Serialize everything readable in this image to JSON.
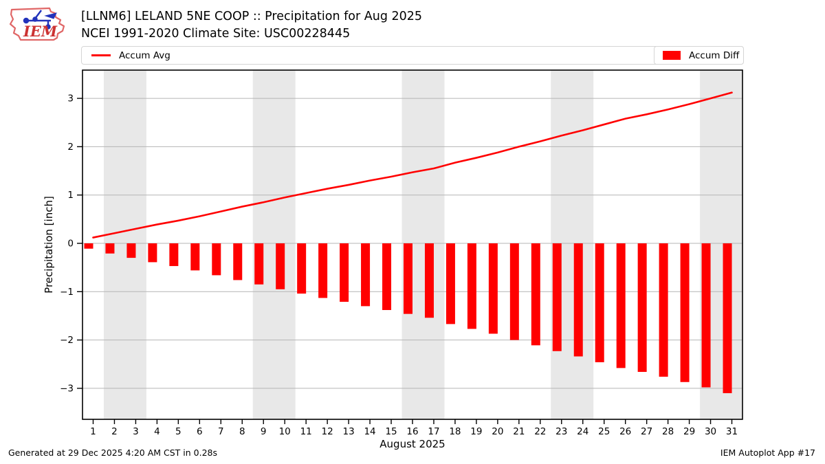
{
  "header": {
    "logo_text": "IEM"
  },
  "legend": {
    "accum_avg_label": "Accum Avg",
    "accum_diff_label": "Accum Diff"
  },
  "footer": {
    "generated": "Generated at 29 Dec 2025 4:20 AM CST in 0.28s",
    "app": "IEM Autoplot App #17"
  },
  "colors": {
    "series_red": "#ff0000",
    "weekend_band": "#e8e8e8",
    "gridline": "#b4b4b4",
    "spine": "#000000",
    "legend_border": "#d5d5d5",
    "logo_outline": "#e06666",
    "logo_vane": "#2233bb",
    "logo_text_red": "#cc3333"
  },
  "chart_data": {
    "type": "bar+line",
    "title": "[LLNM6] LELAND 5NE COOP :: Precipitation for Aug 2025",
    "subtitle": "NCEI 1991-2020 Climate Site: USC00228445",
    "xlabel": "August 2025",
    "ylabel": "Precipitation [inch]",
    "x": [
      1,
      2,
      3,
      4,
      5,
      6,
      7,
      8,
      9,
      10,
      11,
      12,
      13,
      14,
      15,
      16,
      17,
      18,
      19,
      20,
      21,
      22,
      23,
      24,
      25,
      26,
      27,
      28,
      29,
      30,
      31
    ],
    "series": [
      {
        "name": "Accum Avg",
        "type": "line",
        "color": "#ff0000",
        "values": [
          0.12,
          0.21,
          0.3,
          0.39,
          0.47,
          0.56,
          0.66,
          0.76,
          0.85,
          0.95,
          1.04,
          1.13,
          1.21,
          1.3,
          1.38,
          1.47,
          1.55,
          1.67,
          1.77,
          1.88,
          2.0,
          2.11,
          2.23,
          2.34,
          2.46,
          2.58,
          2.67,
          2.77,
          2.88,
          3.0,
          3.12
        ]
      },
      {
        "name": "Accum Diff",
        "type": "bar",
        "color": "#ff0000",
        "values": [
          -0.11,
          -0.21,
          -0.3,
          -0.39,
          -0.47,
          -0.56,
          -0.66,
          -0.76,
          -0.85,
          -0.95,
          -1.04,
          -1.13,
          -1.21,
          -1.3,
          -1.38,
          -1.46,
          -1.54,
          -1.67,
          -1.77,
          -1.87,
          -2.0,
          -2.11,
          -2.23,
          -2.34,
          -2.46,
          -2.58,
          -2.66,
          -2.76,
          -2.87,
          -2.98,
          -3.1
        ]
      }
    ],
    "yticks": [
      3,
      2,
      1,
      0,
      -1,
      -2,
      -3
    ],
    "ytick_labels": [
      "3",
      "2",
      "1",
      "0",
      "−1",
      "−2",
      "−3"
    ],
    "ylim": [
      -3.6,
      3.6
    ],
    "grid": "horizontal",
    "weekend_bands": [
      [
        2,
        3
      ],
      [
        9,
        10
      ],
      [
        16,
        17
      ],
      [
        23,
        24
      ],
      [
        30,
        31
      ]
    ],
    "legend_position": "top"
  }
}
